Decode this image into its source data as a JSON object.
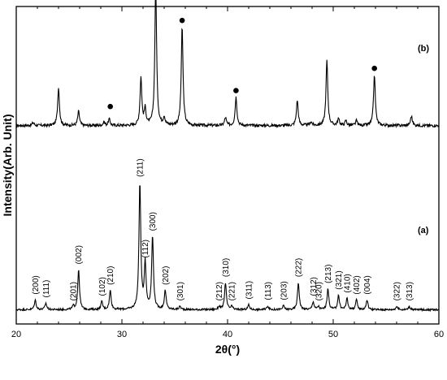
{
  "chart_data": {
    "type": "line",
    "xlabel": "2θ(°)",
    "ylabel": "Intensity(Arb. Unit)",
    "xlim": [
      20,
      60
    ],
    "xticks": [
      20,
      30,
      40,
      50,
      60
    ],
    "ylim": [
      0,
      100
    ],
    "grid": false,
    "series": [
      {
        "name": "(b)",
        "baseline": 62.5,
        "noise": 0.45,
        "width": 0.1,
        "peaks": [
          {
            "x": 21.6,
            "h": 1.0
          },
          {
            "x": 24.0,
            "h": 12.0
          },
          {
            "x": 25.9,
            "h": 4.5
          },
          {
            "x": 28.3,
            "h": 1.0
          },
          {
            "x": 28.8,
            "h": 2.0
          },
          {
            "x": 31.8,
            "h": 15.0
          },
          {
            "x": 32.2,
            "h": 5.0
          },
          {
            "x": 33.2,
            "h": 44.0
          },
          {
            "x": 34.0,
            "h": 2.5
          },
          {
            "x": 35.7,
            "h": 31.0
          },
          {
            "x": 39.8,
            "h": 2.5
          },
          {
            "x": 40.8,
            "h": 9.0
          },
          {
            "x": 46.6,
            "h": 8.0
          },
          {
            "x": 47.9,
            "h": 1.2
          },
          {
            "x": 49.4,
            "h": 20.5
          },
          {
            "x": 50.5,
            "h": 2.0
          },
          {
            "x": 51.2,
            "h": 1.5
          },
          {
            "x": 52.2,
            "h": 1.5
          },
          {
            "x": 53.9,
            "h": 16.0
          },
          {
            "x": 57.4,
            "h": 3.0
          }
        ],
        "markers": [
          {
            "x": 28.9,
            "y": 68.5
          },
          {
            "x": 35.7,
            "y": 95.6
          },
          {
            "x": 40.8,
            "y": 73.5
          },
          {
            "x": 53.9,
            "y": 80.5
          }
        ]
      },
      {
        "name": "(a)",
        "baseline": 4.5,
        "noise": 0.3,
        "width": 0.1,
        "peaks": [
          {
            "x": 21.8,
            "h": 3.0,
            "label": "(200)"
          },
          {
            "x": 22.8,
            "h": 2.0,
            "label": "(111)"
          },
          {
            "x": 25.4,
            "h": 1.0,
            "label": "(201)"
          },
          {
            "x": 25.9,
            "h": 12.5,
            "label": "(002)"
          },
          {
            "x": 28.1,
            "h": 2.5,
            "label": "(102)"
          },
          {
            "x": 28.9,
            "h": 6.0,
            "label": "(210)"
          },
          {
            "x": 31.7,
            "h": 40.0,
            "label": "(211)"
          },
          {
            "x": 32.2,
            "h": 14.5,
            "label": "(112)"
          },
          {
            "x": 32.9,
            "h": 23.0,
            "label": "(300)"
          },
          {
            "x": 34.1,
            "h": 6.0,
            "label": "(202)"
          },
          {
            "x": 35.5,
            "h": 1.0,
            "label": "(301)"
          },
          {
            "x": 39.2,
            "h": 1.0,
            "label": "(212)"
          },
          {
            "x": 39.8,
            "h": 8.5,
            "label": "(310)"
          },
          {
            "x": 40.4,
            "h": 1.0,
            "label": "(221)"
          },
          {
            "x": 42.0,
            "h": 1.5,
            "label": "(311)"
          },
          {
            "x": 43.8,
            "h": 1.2,
            "label": "(113)"
          },
          {
            "x": 45.3,
            "h": 1.2,
            "label": "(203)"
          },
          {
            "x": 46.7,
            "h": 8.5,
            "label": "(222)"
          },
          {
            "x": 48.1,
            "h": 2.5,
            "label": "(312)"
          },
          {
            "x": 48.6,
            "h": 1.0,
            "label": "(320)"
          },
          {
            "x": 49.5,
            "h": 6.5,
            "label": "(213)"
          },
          {
            "x": 50.5,
            "h": 4.5,
            "label": "(321)"
          },
          {
            "x": 51.3,
            "h": 3.5,
            "label": "(410)"
          },
          {
            "x": 52.2,
            "h": 3.0,
            "label": "(402)"
          },
          {
            "x": 53.2,
            "h": 3.0,
            "label": "(004)"
          },
          {
            "x": 56.0,
            "h": 1.0,
            "label": "(322)"
          },
          {
            "x": 57.2,
            "h": 1.0,
            "label": "(313)"
          }
        ]
      }
    ]
  }
}
